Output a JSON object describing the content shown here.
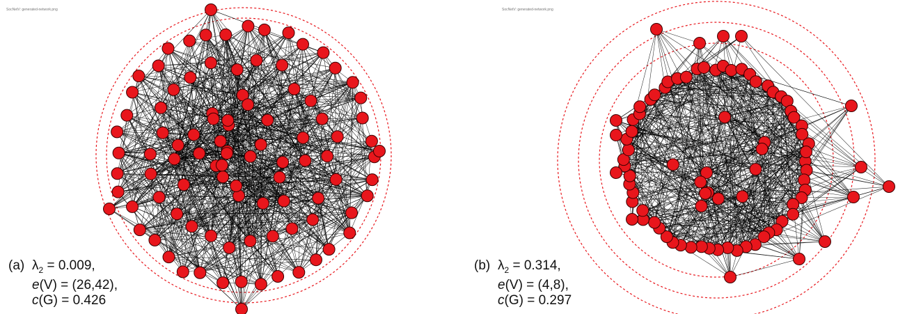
{
  "panels": [
    {
      "id": "a",
      "watermark": "SocNetV: generated-network.png",
      "tag": "(a)",
      "lambda_label": "λ",
      "lambda_sub": "2",
      "lambda_value": " = 0.009,",
      "ecc_e": "e",
      "ecc_rest": "(V) = (26,42),",
      "c_c": "c",
      "c_rest": "(G) = 0.426"
    },
    {
      "id": "b",
      "watermark": "SocNetV: generated-network.png",
      "tag": "(b)",
      "lambda_label": "λ",
      "lambda_sub": "2",
      "lambda_value": " = 0.314,",
      "ecc_e": "e",
      "ecc_rest": "(V) = (4,8),",
      "c_c": "c",
      "c_rest": "(G) = 0.297"
    }
  ],
  "colors": {
    "node_fill": "#e8161c",
    "node_stroke": "#3a0000",
    "edge": "#000000",
    "ring": "#e8161c"
  }
}
